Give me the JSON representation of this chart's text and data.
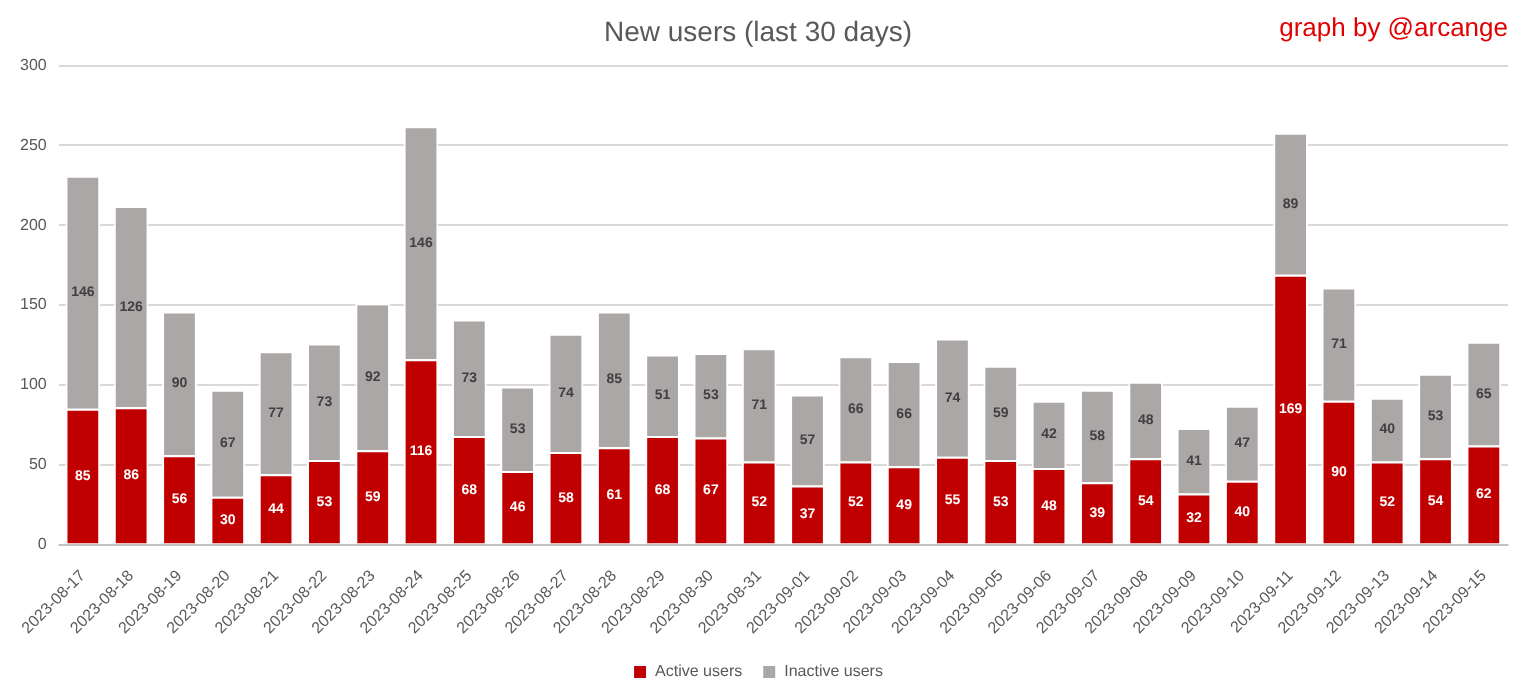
{
  "chart_data": {
    "type": "bar",
    "title": "New users (last 30 days)",
    "annotations": [
      "graph by @arcange"
    ],
    "categories": [
      "2023-08-17",
      "2023-08-18",
      "2023-08-19",
      "2023-08-20",
      "2023-08-21",
      "2023-08-22",
      "2023-08-23",
      "2023-08-24",
      "2023-08-25",
      "2023-08-26",
      "2023-08-27",
      "2023-08-28",
      "2023-08-29",
      "2023-08-30",
      "2023-08-31",
      "2023-09-01",
      "2023-09-02",
      "2023-09-03",
      "2023-09-04",
      "2023-09-05",
      "2023-09-06",
      "2023-09-07",
      "2023-09-08",
      "2023-09-09",
      "2023-09-10",
      "2023-09-11",
      "2023-09-12",
      "2023-09-13",
      "2023-09-14",
      "2023-09-15"
    ],
    "series": [
      {
        "name": "Active users",
        "color": "#c00000",
        "values": [
          85,
          86,
          56,
          30,
          44,
          53,
          59,
          116,
          68,
          46,
          58,
          61,
          68,
          67,
          52,
          37,
          52,
          49,
          55,
          53,
          48,
          39,
          54,
          32,
          40,
          169,
          90,
          52,
          54,
          62
        ]
      },
      {
        "name": "Inactive users",
        "color": "#aba7a6",
        "values": [
          146,
          126,
          90,
          67,
          77,
          73,
          92,
          146,
          73,
          53,
          74,
          85,
          51,
          53,
          71,
          57,
          66,
          66,
          74,
          59,
          42,
          58,
          48,
          41,
          47,
          89,
          71,
          40,
          53,
          65
        ]
      }
    ],
    "stacked": true,
    "data_labels": true,
    "ylim": [
      0,
      300
    ],
    "yticks": [
      0,
      50,
      100,
      150,
      200,
      250,
      300
    ],
    "grid": "y",
    "legend": "bottom"
  }
}
